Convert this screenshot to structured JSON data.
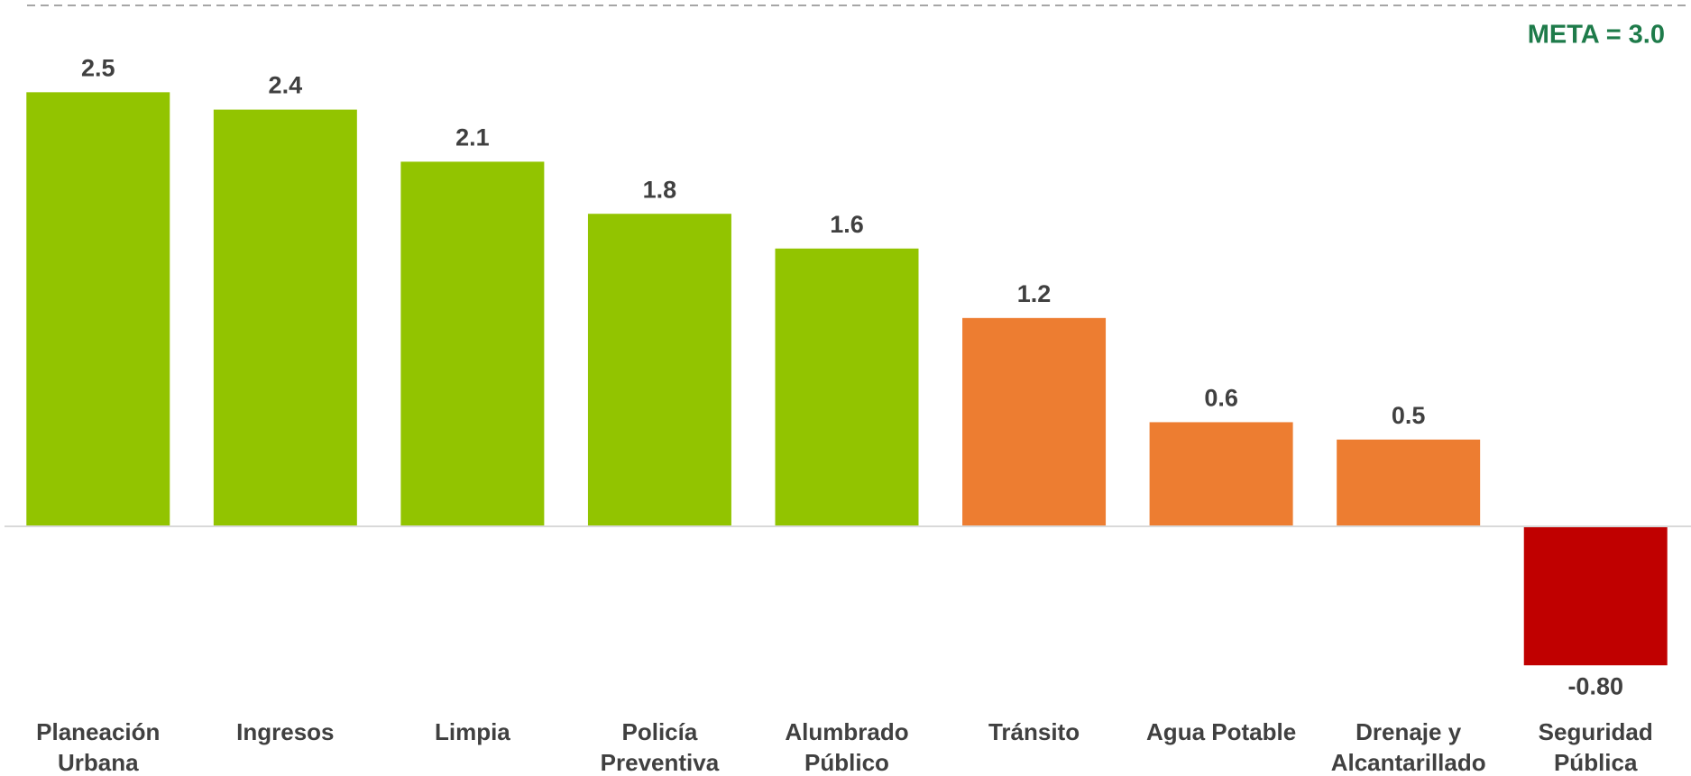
{
  "chart_data": {
    "type": "bar",
    "categories": [
      "Planeación Urbana",
      "Ingresos",
      "Limpia",
      "Policía Preventiva",
      "Alumbrado Público",
      "Tránsito",
      "Agua Potable",
      "Drenaje y Alcantarillado",
      "Seguridad Pública"
    ],
    "values": [
      2.5,
      2.4,
      2.1,
      1.8,
      1.6,
      1.2,
      0.6,
      0.5,
      -0.8
    ],
    "value_labels": [
      "2.5",
      "2.4",
      "2.1",
      "1.8",
      "1.6",
      "1.2",
      "0.6",
      "0.5",
      "-0.80"
    ],
    "colors": [
      "#92c400",
      "#92c400",
      "#92c400",
      "#92c400",
      "#92c400",
      "#ed7d31",
      "#ed7d31",
      "#ed7d31",
      "#c00000"
    ],
    "ylim": [
      -1.1,
      3
    ],
    "target_line": {
      "value": 3,
      "label": "META = 3.0"
    },
    "grid": false
  }
}
